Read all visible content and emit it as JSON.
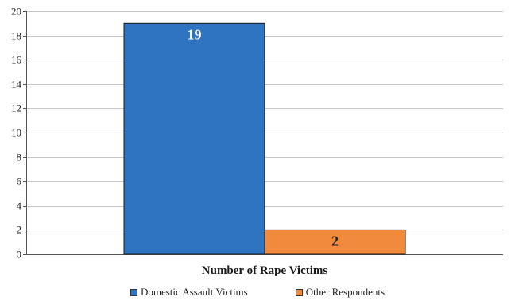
{
  "chart_data": {
    "type": "bar",
    "categories": [
      "Number of Rape Victims"
    ],
    "series": [
      {
        "name": "Domestic Assault Victims",
        "values": [
          19
        ],
        "color": "#2e74c0",
        "label_color": "#ffffff"
      },
      {
        "name": "Other Respondents",
        "values": [
          2
        ],
        "color": "#f28a3d",
        "label_color": "#222222"
      }
    ],
    "title": "",
    "xlabel": "Number of Rape Victims",
    "ylabel": "",
    "ylim": [
      0,
      20
    ],
    "yticks": [
      0,
      2,
      4,
      6,
      8,
      10,
      12,
      14,
      16,
      18,
      20
    ],
    "grid": true,
    "legend_position": "bottom"
  }
}
